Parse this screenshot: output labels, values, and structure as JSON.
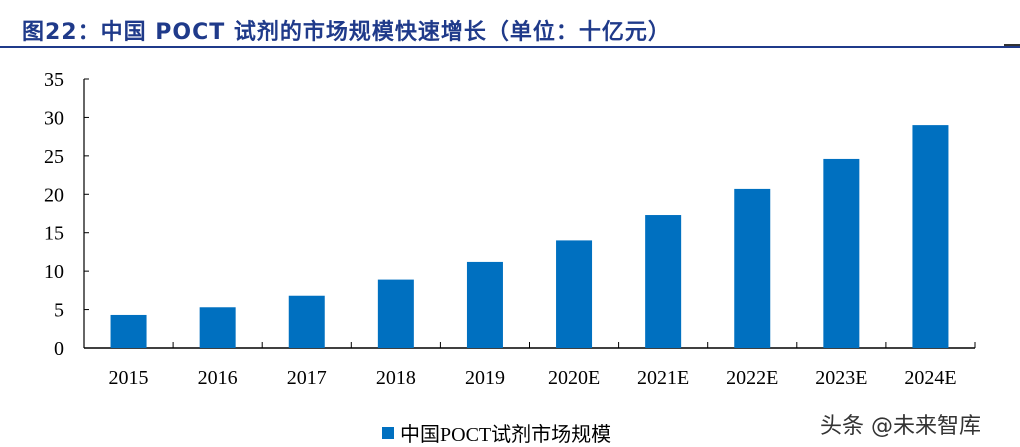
{
  "title": "图22：中国 POCT 试剂的市场规模快速增长（单位：十亿元）",
  "chart_data": {
    "type": "bar",
    "categories": [
      "2015",
      "2016",
      "2017",
      "2018",
      "2019",
      "2020E",
      "2021E",
      "2022E",
      "2023E",
      "2024E"
    ],
    "series": [
      {
        "name": "中国POCT试剂市场规模",
        "values": [
          4.3,
          5.3,
          6.8,
          8.9,
          11.2,
          14.0,
          17.3,
          20.7,
          24.6,
          29.0
        ],
        "color": "#0070c0"
      }
    ],
    "yticks": [
      0,
      5,
      10,
      15,
      20,
      25,
      30,
      35
    ],
    "ylim": [
      0,
      35
    ],
    "grid": false,
    "legend": "bottom"
  },
  "watermark": "头条 @未来智库"
}
